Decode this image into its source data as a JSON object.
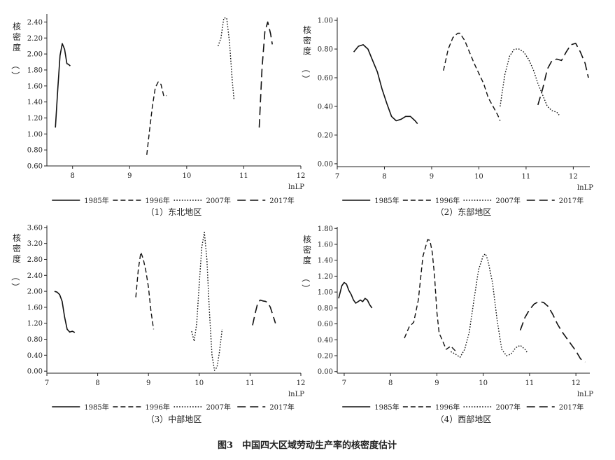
{
  "figure_caption": "图3　中国四大区域劳动生产率的核密度估计",
  "chart_data": [
    {
      "type": "line",
      "subtitle": "（1）东北地区",
      "xlabel": "lnLP",
      "ylabel": "核密度（）",
      "xlim": [
        7.55,
        12
      ],
      "ylim": [
        0.6,
        2.5
      ],
      "xticks": [
        8,
        9,
        10,
        11,
        12
      ],
      "yticks": [
        "0.60",
        "0.80",
        "1.00",
        "1.20",
        "1.40",
        "1.60",
        "1.80",
        "2.00",
        "2.20",
        "2.40"
      ],
      "series": [
        {
          "name": "1985年",
          "dash": "solid",
          "x": [
            7.7,
            7.74,
            7.78,
            7.82,
            7.86,
            7.9,
            7.93,
            7.96
          ],
          "y": [
            1.08,
            1.55,
            1.98,
            2.13,
            2.06,
            1.88,
            1.87,
            1.85
          ]
        },
        {
          "name": "1996年",
          "dash": "long",
          "x": [
            9.3,
            9.35,
            9.4,
            9.45,
            9.5,
            9.55,
            9.6,
            9.65
          ],
          "y": [
            0.74,
            1.05,
            1.35,
            1.58,
            1.65,
            1.62,
            1.47,
            1.48
          ]
        },
        {
          "name": "2007年",
          "dash": "dot",
          "x": [
            10.55,
            10.6,
            10.65,
            10.7,
            10.75,
            10.8,
            10.83
          ],
          "y": [
            2.1,
            2.2,
            2.45,
            2.45,
            2.15,
            1.65,
            1.42
          ]
        },
        {
          "name": "2017年",
          "dash": "longlong",
          "x": [
            11.27,
            11.32,
            11.37,
            11.42,
            11.47,
            11.5
          ],
          "y": [
            1.08,
            1.82,
            2.28,
            2.4,
            2.25,
            2.12
          ]
        }
      ]
    },
    {
      "type": "line",
      "subtitle": "（2）东部地区",
      "xlabel": "lnLP",
      "ylabel": "核密度（）",
      "xlim": [
        7,
        12.35
      ],
      "ylim": [
        -0.02,
        1.02
      ],
      "xticks": [
        7,
        8,
        9,
        10,
        11,
        12
      ],
      "yticks": [
        "0.00",
        "0.20",
        "0.40",
        "0.60",
        "0.80",
        "1.00"
      ],
      "series": [
        {
          "name": "1985年",
          "dash": "solid",
          "x": [
            7.35,
            7.45,
            7.55,
            7.65,
            7.75,
            7.85,
            7.95,
            8.05,
            8.15,
            8.25,
            8.35,
            8.45,
            8.55,
            8.65,
            8.7
          ],
          "y": [
            0.78,
            0.82,
            0.83,
            0.8,
            0.72,
            0.64,
            0.52,
            0.42,
            0.33,
            0.3,
            0.31,
            0.33,
            0.33,
            0.3,
            0.28
          ]
        },
        {
          "name": "1996年",
          "dash": "long",
          "x": [
            9.25,
            9.35,
            9.45,
            9.55,
            9.6,
            9.7,
            9.8,
            9.9,
            10.0,
            10.1,
            10.2,
            10.3,
            10.4,
            10.45
          ],
          "y": [
            0.65,
            0.8,
            0.88,
            0.91,
            0.91,
            0.86,
            0.78,
            0.7,
            0.63,
            0.56,
            0.46,
            0.4,
            0.34,
            0.3
          ]
        },
        {
          "name": "2007年",
          "dash": "dot",
          "x": [
            10.45,
            10.55,
            10.65,
            10.75,
            10.85,
            10.95,
            11.05,
            11.15,
            11.25,
            11.35,
            11.45,
            11.55,
            11.65,
            11.7
          ],
          "y": [
            0.4,
            0.62,
            0.75,
            0.8,
            0.8,
            0.78,
            0.73,
            0.66,
            0.56,
            0.48,
            0.4,
            0.37,
            0.36,
            0.34
          ]
        },
        {
          "name": "2017年",
          "dash": "longlong",
          "x": [
            11.25,
            11.35,
            11.45,
            11.55,
            11.65,
            11.75,
            11.85,
            11.95,
            12.05,
            12.15,
            12.25,
            12.32
          ],
          "y": [
            0.41,
            0.52,
            0.66,
            0.72,
            0.73,
            0.72,
            0.78,
            0.83,
            0.84,
            0.78,
            0.7,
            0.6
          ]
        }
      ]
    },
    {
      "type": "line",
      "subtitle": "（3）中部地区",
      "xlabel": "lnLP",
      "ylabel": "核密度（）",
      "xlim": [
        7,
        12
      ],
      "ylim": [
        -0.05,
        3.65
      ],
      "xticks": [
        7,
        8,
        9,
        10,
        11,
        12
      ],
      "yticks": [
        "0.00",
        "0.40",
        "0.80",
        "1.20",
        "1.60",
        "2.00",
        "2.40",
        "2.80",
        "3.20",
        "3.60"
      ],
      "series": [
        {
          "name": "1985年",
          "dash": "solid",
          "x": [
            7.15,
            7.2,
            7.25,
            7.3,
            7.35,
            7.4,
            7.45,
            7.5,
            7.55
          ],
          "y": [
            2.0,
            1.98,
            1.92,
            1.75,
            1.35,
            1.05,
            0.98,
            1.0,
            0.97
          ]
        },
        {
          "name": "1996年",
          "dash": "long",
          "x": [
            8.75,
            8.8,
            8.85,
            8.9,
            8.95,
            9.0,
            9.05,
            9.1
          ],
          "y": [
            1.85,
            2.55,
            2.98,
            2.8,
            2.5,
            2.1,
            1.5,
            1.05
          ]
        },
        {
          "name": "2007年",
          "dash": "dot",
          "x": [
            9.85,
            9.9,
            9.95,
            10.0,
            10.05,
            10.1,
            10.15,
            10.2,
            10.25,
            10.3,
            10.35,
            10.4,
            10.45
          ],
          "y": [
            1.0,
            0.75,
            1.2,
            2.2,
            3.1,
            3.48,
            2.8,
            1.5,
            0.4,
            0.02,
            0.1,
            0.5,
            1.05
          ]
        },
        {
          "name": "2017年",
          "dash": "longlong",
          "x": [
            11.05,
            11.1,
            11.15,
            11.2,
            11.25,
            11.3,
            11.35,
            11.4,
            11.45,
            11.5
          ],
          "y": [
            1.15,
            1.45,
            1.7,
            1.78,
            1.76,
            1.75,
            1.72,
            1.6,
            1.4,
            1.2
          ]
        }
      ]
    },
    {
      "type": "line",
      "subtitle": "（4）西部地区",
      "xlabel": "lnLP",
      "ylabel": "核密度（）",
      "xlim": [
        6.85,
        12.3
      ],
      "ylim": [
        -0.02,
        1.82
      ],
      "xticks": [
        7,
        8,
        9,
        10,
        11,
        12
      ],
      "yticks": [
        "0.00",
        "0.20",
        "0.40",
        "0.60",
        "0.80",
        "1.00",
        "1.20",
        "1.40",
        "1.60",
        "1.80"
      ],
      "series": [
        {
          "name": "1985年",
          "dash": "solid",
          "x": [
            6.88,
            6.95,
            7.0,
            7.05,
            7.1,
            7.15,
            7.2,
            7.25,
            7.3,
            7.35,
            7.4,
            7.45,
            7.5,
            7.55,
            7.6
          ],
          "y": [
            0.92,
            1.08,
            1.12,
            1.1,
            1.02,
            0.97,
            0.9,
            0.86,
            0.88,
            0.9,
            0.88,
            0.92,
            0.9,
            0.84,
            0.8
          ]
        },
        {
          "name": "1996年",
          "dash": "long",
          "x": [
            8.3,
            8.4,
            8.5,
            8.6,
            8.7,
            8.8,
            8.85,
            8.9,
            8.95,
            9.0,
            9.05,
            9.1,
            9.15,
            9.2,
            9.3,
            9.4
          ],
          "y": [
            0.42,
            0.56,
            0.62,
            0.9,
            1.45,
            1.66,
            1.65,
            1.5,
            1.2,
            0.75,
            0.48,
            0.42,
            0.35,
            0.28,
            0.32,
            0.26
          ]
        },
        {
          "name": "2007年",
          "dash": "dot",
          "x": [
            9.3,
            9.4,
            9.5,
            9.6,
            9.7,
            9.8,
            9.9,
            10.0,
            10.05,
            10.1,
            10.2,
            10.3,
            10.4,
            10.5,
            10.6,
            10.7,
            10.8,
            10.9,
            10.95
          ],
          "y": [
            0.25,
            0.22,
            0.18,
            0.28,
            0.5,
            0.9,
            1.28,
            1.46,
            1.48,
            1.4,
            1.12,
            0.65,
            0.28,
            0.2,
            0.22,
            0.3,
            0.33,
            0.28,
            0.24
          ]
        },
        {
          "name": "2017年",
          "dash": "longlong",
          "x": [
            10.8,
            10.9,
            11.0,
            11.1,
            11.2,
            11.3,
            11.4,
            11.5,
            11.6,
            11.7,
            11.8,
            11.9,
            12.0,
            12.1,
            12.2
          ],
          "y": [
            0.52,
            0.68,
            0.78,
            0.85,
            0.88,
            0.87,
            0.82,
            0.72,
            0.6,
            0.5,
            0.42,
            0.34,
            0.26,
            0.16,
            0.12
          ]
        }
      ]
    }
  ]
}
